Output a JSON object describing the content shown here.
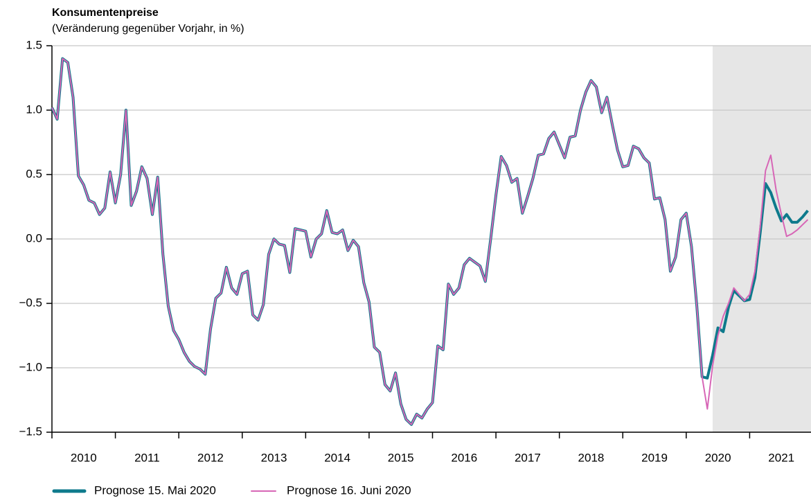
{
  "chart_data": {
    "type": "line",
    "title": "Konsumentenpreise",
    "subtitle": "(Veränderung gegenüber Vorjahr, in %)",
    "x": [
      2010,
      2010.083,
      2010.167,
      2010.25,
      2010.333,
      2010.417,
      2010.5,
      2010.583,
      2010.667,
      2010.75,
      2010.833,
      2010.917,
      2011,
      2011.083,
      2011.167,
      2011.25,
      2011.333,
      2011.417,
      2011.5,
      2011.583,
      2011.667,
      2011.75,
      2011.833,
      2011.917,
      2012,
      2012.083,
      2012.167,
      2012.25,
      2012.333,
      2012.417,
      2012.5,
      2012.583,
      2012.667,
      2012.75,
      2012.833,
      2012.917,
      2013,
      2013.083,
      2013.167,
      2013.25,
      2013.333,
      2013.417,
      2013.5,
      2013.583,
      2013.667,
      2013.75,
      2013.833,
      2013.917,
      2014,
      2014.083,
      2014.167,
      2014.25,
      2014.333,
      2014.417,
      2014.5,
      2014.583,
      2014.667,
      2014.75,
      2014.833,
      2014.917,
      2015,
      2015.083,
      2015.167,
      2015.25,
      2015.333,
      2015.417,
      2015.5,
      2015.583,
      2015.667,
      2015.75,
      2015.833,
      2015.917,
      2016,
      2016.083,
      2016.167,
      2016.25,
      2016.333,
      2016.417,
      2016.5,
      2016.583,
      2016.667,
      2016.75,
      2016.833,
      2016.917,
      2017,
      2017.083,
      2017.167,
      2017.25,
      2017.333,
      2017.417,
      2017.5,
      2017.583,
      2017.667,
      2017.75,
      2017.833,
      2017.917,
      2018,
      2018.083,
      2018.167,
      2018.25,
      2018.333,
      2018.417,
      2018.5,
      2018.583,
      2018.667,
      2018.75,
      2018.833,
      2018.917,
      2019,
      2019.083,
      2019.167,
      2019.25,
      2019.333,
      2019.417,
      2019.5,
      2019.583,
      2019.667,
      2019.75,
      2019.833,
      2019.917,
      2020,
      2020.083,
      2020.167,
      2020.25,
      2020.333,
      2020.417,
      2020.5,
      2020.583,
      2020.667,
      2020.75,
      2020.833,
      2020.917,
      2021,
      2021.083,
      2021.167,
      2021.25,
      2021.333,
      2021.417,
      2021.5,
      2021.583,
      2021.667,
      2021.75,
      2021.833,
      2021.917
    ],
    "series": [
      {
        "name": "Prognose 15. Mai 2020",
        "color": "#0e7a8c",
        "values": [
          1.02,
          0.93,
          1.4,
          1.37,
          1.1,
          0.49,
          0.42,
          0.3,
          0.28,
          0.19,
          0.24,
          0.52,
          0.28,
          0.5,
          1.0,
          0.26,
          0.37,
          0.56,
          0.47,
          0.19,
          0.48,
          -0.12,
          -0.52,
          -0.71,
          -0.78,
          -0.88,
          -0.95,
          -0.99,
          -1.01,
          -1.05,
          -0.7,
          -0.46,
          -0.42,
          -0.22,
          -0.38,
          -0.43,
          -0.27,
          -0.25,
          -0.59,
          -0.63,
          -0.51,
          -0.12,
          0.0,
          -0.04,
          -0.05,
          -0.26,
          0.08,
          0.07,
          0.06,
          -0.14,
          0.0,
          0.04,
          0.22,
          0.05,
          0.04,
          0.07,
          -0.09,
          -0.01,
          -0.06,
          -0.34,
          -0.49,
          -0.84,
          -0.88,
          -1.13,
          -1.18,
          -1.04,
          -1.28,
          -1.4,
          -1.44,
          -1.36,
          -1.39,
          -1.32,
          -1.27,
          -0.83,
          -0.86,
          -0.35,
          -0.43,
          -0.38,
          -0.2,
          -0.15,
          -0.18,
          -0.21,
          -0.33,
          0.0,
          0.34,
          0.64,
          0.57,
          0.44,
          0.47,
          0.2,
          0.33,
          0.47,
          0.65,
          0.66,
          0.78,
          0.83,
          0.73,
          0.63,
          0.79,
          0.8,
          1.0,
          1.14,
          1.23,
          1.18,
          0.98,
          1.1,
          0.89,
          0.69,
          0.56,
          0.57,
          0.72,
          0.7,
          0.63,
          0.59,
          0.31,
          0.32,
          0.15,
          -0.25,
          -0.14,
          0.15,
          0.2,
          -0.06,
          -0.52,
          -1.07,
          -1.08,
          -0.9,
          -0.69,
          -0.72,
          -0.53,
          -0.4,
          -0.44,
          -0.48,
          -0.47,
          -0.3,
          0.05,
          0.43,
          0.36,
          0.24,
          0.14,
          0.19,
          0.13,
          0.13,
          0.17,
          0.22
        ]
      },
      {
        "name": "Prognose 16. Juni 2020",
        "color": "#d766b6",
        "values": [
          1.02,
          0.93,
          1.4,
          1.37,
          1.1,
          0.49,
          0.42,
          0.3,
          0.28,
          0.19,
          0.24,
          0.52,
          0.28,
          0.5,
          1.0,
          0.26,
          0.37,
          0.56,
          0.47,
          0.19,
          0.48,
          -0.12,
          -0.52,
          -0.71,
          -0.78,
          -0.88,
          -0.95,
          -0.99,
          -1.01,
          -1.05,
          -0.7,
          -0.46,
          -0.42,
          -0.22,
          -0.38,
          -0.43,
          -0.27,
          -0.25,
          -0.59,
          -0.63,
          -0.51,
          -0.12,
          0.0,
          -0.04,
          -0.05,
          -0.26,
          0.08,
          0.07,
          0.06,
          -0.14,
          0.0,
          0.04,
          0.22,
          0.05,
          0.04,
          0.07,
          -0.09,
          -0.01,
          -0.06,
          -0.34,
          -0.49,
          -0.84,
          -0.88,
          -1.13,
          -1.18,
          -1.04,
          -1.28,
          -1.4,
          -1.44,
          -1.36,
          -1.39,
          -1.32,
          -1.27,
          -0.83,
          -0.86,
          -0.35,
          -0.43,
          -0.38,
          -0.2,
          -0.15,
          -0.18,
          -0.21,
          -0.33,
          0.0,
          0.34,
          0.64,
          0.57,
          0.44,
          0.47,
          0.2,
          0.33,
          0.47,
          0.65,
          0.66,
          0.78,
          0.83,
          0.73,
          0.63,
          0.79,
          0.8,
          1.0,
          1.14,
          1.23,
          1.18,
          0.98,
          1.1,
          0.89,
          0.69,
          0.56,
          0.57,
          0.72,
          0.7,
          0.63,
          0.59,
          0.31,
          0.32,
          0.15,
          -0.25,
          -0.14,
          0.15,
          0.2,
          -0.06,
          -0.52,
          -1.07,
          -1.32,
          -0.98,
          -0.75,
          -0.6,
          -0.5,
          -0.38,
          -0.43,
          -0.48,
          -0.43,
          -0.25,
          0.1,
          0.53,
          0.65,
          0.38,
          0.19,
          0.02,
          0.04,
          0.07,
          0.11,
          0.15
        ]
      }
    ],
    "forecast_start": 2020.417,
    "forecast_color": "#e6e6e6",
    "xlim": [
      2010,
      2022
    ],
    "xticks": [
      2010,
      2011,
      2012,
      2013,
      2014,
      2015,
      2016,
      2017,
      2018,
      2019,
      2020,
      2021
    ],
    "year_labels": [
      "2010",
      "2011",
      "2012",
      "2013",
      "2014",
      "2015",
      "2016",
      "2017",
      "2018",
      "2019",
      "2020",
      "2021"
    ],
    "ylim": [
      -1.5,
      1.5
    ],
    "yticks": [
      {
        "value": -1.5,
        "label": "−1.5"
      },
      {
        "value": -1.0,
        "label": "−1.0"
      },
      {
        "value": -0.5,
        "label": "−0.5"
      },
      {
        "value": 0.0,
        "label": "0.0"
      },
      0.5,
      {
        "value": 1.0,
        "label": "1.0"
      },
      1.5
    ],
    "grid": true
  }
}
